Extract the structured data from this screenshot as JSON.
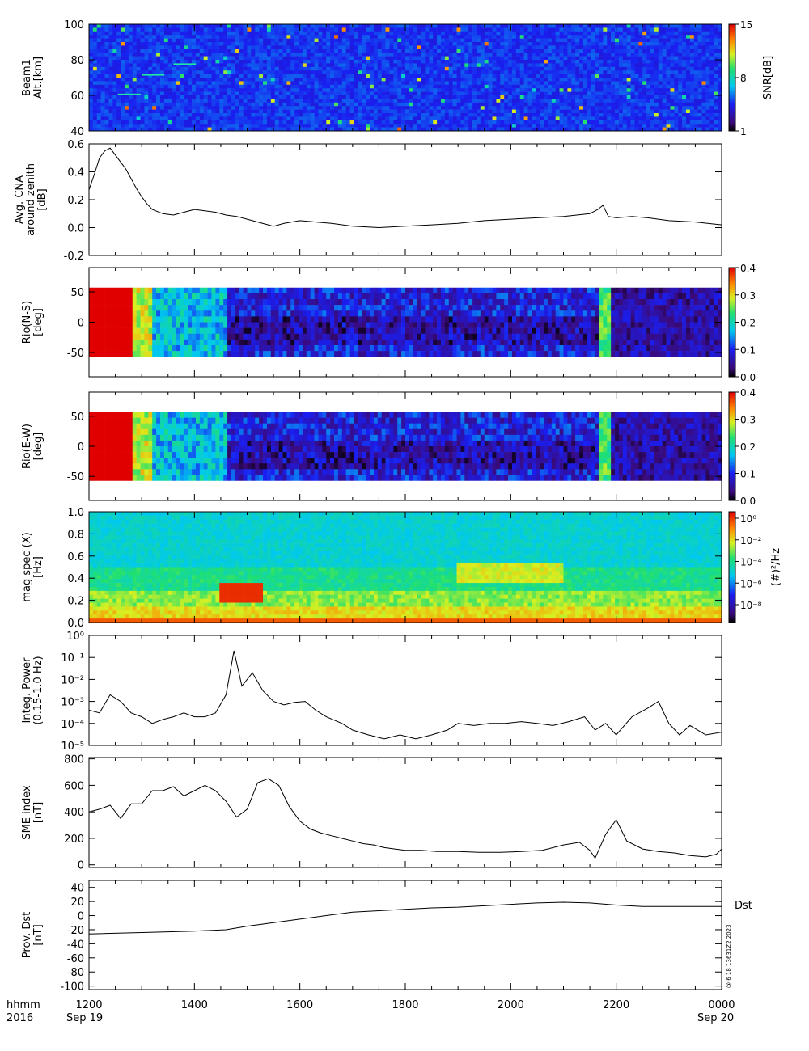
{
  "footer": {
    "hhmm_label": "hhmm",
    "year_label": "2016",
    "start_date": "Sep 19",
    "end_date": "Sep 20",
    "time_ticks": [
      "1200",
      "1400",
      "1600",
      "1800",
      "2000",
      "2200",
      "0000"
    ]
  },
  "stamp": "@ 6 18 13631Z2 2023",
  "chart_data": [
    {
      "type": "heatmap",
      "ylabel": [
        "Beam1",
        "Alt.[km]"
      ],
      "yticks": [
        "40",
        "60",
        "80",
        "100"
      ],
      "ylim": [
        40,
        100
      ],
      "colorbar": {
        "label": "SNR[dB]",
        "ticks": [
          "1",
          "8",
          "15"
        ],
        "range": [
          1,
          15
        ]
      },
      "features": [
        {
          "x_hour": 12.55,
          "y": 61,
          "note": "weak trail"
        },
        {
          "x_hour": 13.0,
          "y": 72
        },
        {
          "x_hour": 13.6,
          "y": 78
        }
      ]
    },
    {
      "type": "line",
      "ylabel": [
        "Avg. CNA",
        "around zenith",
        "[dB]"
      ],
      "yticks": [
        "0.6",
        "0.4",
        "0.2",
        "0.0",
        "-0.2"
      ],
      "ylim": [
        -0.2,
        0.6
      ],
      "x": [
        12.0,
        12.1,
        12.2,
        12.3,
        12.4,
        12.5,
        12.6,
        12.7,
        12.8,
        12.9,
        13.0,
        13.1,
        13.2,
        13.4,
        13.6,
        13.8,
        14.0,
        14.2,
        14.4,
        14.6,
        14.8,
        15.0,
        15.2,
        15.4,
        15.5,
        15.7,
        16.0,
        16.3,
        16.6,
        17.0,
        17.5,
        18.0,
        18.5,
        19.0,
        19.5,
        20.0,
        20.5,
        21.0,
        21.5,
        21.65,
        21.75,
        21.85,
        22.0,
        22.3,
        22.6,
        23.0,
        23.5,
        24.0
      ],
      "values": [
        0.27,
        0.38,
        0.5,
        0.55,
        0.57,
        0.52,
        0.47,
        0.42,
        0.35,
        0.28,
        0.22,
        0.17,
        0.13,
        0.1,
        0.09,
        0.11,
        0.13,
        0.12,
        0.11,
        0.09,
        0.08,
        0.06,
        0.04,
        0.02,
        0.01,
        0.03,
        0.05,
        0.04,
        0.03,
        0.01,
        0.0,
        0.01,
        0.02,
        0.03,
        0.05,
        0.06,
        0.07,
        0.08,
        0.1,
        0.13,
        0.16,
        0.08,
        0.07,
        0.08,
        0.07,
        0.05,
        0.04,
        0.02
      ]
    },
    {
      "type": "heatmap",
      "ylabel": [
        "Rio(N-S)",
        "[deg]"
      ],
      "yticks": [
        "50",
        "0",
        "-50"
      ],
      "ylim": [
        -90,
        90
      ],
      "colorbar": {
        "label": "",
        "ticks": [
          "0.4",
          "0.3",
          "0.2",
          "0.1",
          "0.0"
        ],
        "range": [
          0,
          0.4
        ]
      },
      "features": [
        {
          "x_range": [
            12.0,
            12.9
          ],
          "value": 0.4,
          "note": "high absorption"
        },
        {
          "x_hour": 21.8,
          "value": 0.25,
          "note": "vertical spike"
        }
      ]
    },
    {
      "type": "heatmap",
      "ylabel": [
        "Rio(E-W)",
        "[deg]"
      ],
      "yticks": [
        "50",
        "0",
        "-50"
      ],
      "ylim": [
        -90,
        90
      ],
      "colorbar": {
        "label": "",
        "ticks": [
          "0.4",
          "0.3",
          "0.2",
          "0.1",
          "0.0"
        ],
        "range": [
          0,
          0.4
        ]
      },
      "features": [
        {
          "x_range": [
            12.0,
            12.8
          ],
          "value": 0.4,
          "note": "high absorption"
        },
        {
          "x_hour": 21.8,
          "value": 0.2,
          "note": "vertical spike"
        }
      ]
    },
    {
      "type": "heatmap",
      "ylabel": [
        "mag spec (X)",
        "[Hz]"
      ],
      "yticks": [
        "1.0",
        "0.8",
        "0.6",
        "0.4",
        "0.2",
        "0.0"
      ],
      "ylim": [
        0,
        1.0
      ],
      "colorbar": {
        "label": "(#)²/Hz",
        "ticks": [
          "10⁰",
          "10⁻²",
          "10⁻⁴",
          "10⁻⁶",
          "10⁻⁸"
        ],
        "scale": "log"
      },
      "features": [
        {
          "x_range": [
            14.5,
            15.3
          ],
          "y_range": [
            0.2,
            0.35
          ],
          "note": "power peak"
        }
      ]
    },
    {
      "type": "line",
      "ylabel": [
        "Integ. Power",
        "(0.15-1.0 Hz)"
      ],
      "yscale": "log",
      "yticks": [
        "10⁰",
        "10⁻¹",
        "10⁻²",
        "10⁻³",
        "10⁻⁴",
        "10⁻⁵"
      ],
      "ylim": [
        1e-05,
        1
      ],
      "x": [
        12.0,
        12.2,
        12.4,
        12.6,
        12.8,
        13.0,
        13.2,
        13.4,
        13.6,
        13.8,
        14.0,
        14.2,
        14.4,
        14.6,
        14.75,
        14.9,
        15.1,
        15.3,
        15.5,
        15.7,
        15.9,
        16.1,
        16.3,
        16.5,
        16.8,
        17.0,
        17.3,
        17.6,
        17.9,
        18.2,
        18.5,
        18.8,
        19.0,
        19.3,
        19.6,
        19.9,
        20.2,
        20.5,
        20.8,
        21.1,
        21.4,
        21.6,
        21.8,
        22.0,
        22.3,
        22.6,
        22.8,
        23.0,
        23.2,
        23.4,
        23.7,
        24.0
      ],
      "values": [
        0.0004,
        0.0003,
        0.002,
        0.001,
        0.0003,
        0.0002,
        0.0001,
        0.00015,
        0.0002,
        0.0003,
        0.0002,
        0.0002,
        0.0003,
        0.002,
        0.2,
        0.005,
        0.02,
        0.003,
        0.001,
        0.0007,
        0.0009,
        0.001,
        0.0004,
        0.0002,
        0.0001,
        5e-05,
        3e-05,
        2e-05,
        3e-05,
        2e-05,
        3e-05,
        5e-05,
        0.0001,
        8e-05,
        0.0001,
        0.0001,
        0.00012,
        0.0001,
        8e-05,
        0.00012,
        0.0002,
        5e-05,
        0.0001,
        3e-05,
        0.0002,
        0.0005,
        0.001,
        0.0001,
        3e-05,
        8e-05,
        3e-05,
        4e-05
      ]
    },
    {
      "type": "line",
      "ylabel": [
        "SME index",
        "[nT]"
      ],
      "yticks": [
        "800",
        "600",
        "400",
        "200",
        "0"
      ],
      "ylim": [
        -20,
        810
      ],
      "x": [
        12.0,
        12.2,
        12.4,
        12.6,
        12.8,
        13.0,
        13.2,
        13.4,
        13.6,
        13.8,
        14.0,
        14.2,
        14.4,
        14.6,
        14.8,
        15.0,
        15.2,
        15.4,
        15.6,
        15.8,
        16.0,
        16.2,
        16.4,
        16.6,
        16.8,
        17.0,
        17.2,
        17.4,
        17.6,
        17.8,
        18.0,
        18.3,
        18.6,
        19.0,
        19.4,
        19.8,
        20.2,
        20.6,
        21.0,
        21.3,
        21.5,
        21.6,
        21.8,
        22.0,
        22.2,
        22.5,
        22.8,
        23.1,
        23.4,
        23.7,
        23.9,
        24.0
      ],
      "values": [
        400,
        420,
        450,
        350,
        460,
        460,
        560,
        560,
        590,
        520,
        560,
        600,
        560,
        480,
        360,
        420,
        620,
        650,
        600,
        440,
        330,
        270,
        240,
        220,
        200,
        180,
        160,
        150,
        130,
        120,
        110,
        110,
        100,
        100,
        95,
        95,
        100,
        110,
        150,
        170,
        110,
        50,
        230,
        340,
        180,
        120,
        100,
        90,
        70,
        60,
        80,
        120
      ]
    },
    {
      "type": "line",
      "ylabel": [
        "Prov. Dst",
        "[nT]"
      ],
      "yticks": [
        "40",
        "20",
        "0",
        "-20",
        "-40",
        "-60",
        "-80",
        "-100"
      ],
      "ylim": [
        -105,
        50
      ],
      "legend": "Dst",
      "x": [
        12.0,
        13.0,
        14.0,
        14.6,
        15.0,
        15.5,
        16.0,
        16.5,
        17.0,
        17.5,
        18.0,
        18.5,
        19.0,
        19.5,
        20.0,
        20.5,
        21.0,
        21.5,
        22.0,
        22.5,
        23.0,
        23.5,
        24.0
      ],
      "values": [
        -26,
        -24,
        -22,
        -20,
        -15,
        -10,
        -5,
        0,
        5,
        7,
        9,
        11,
        12,
        14,
        16,
        18,
        19,
        18,
        15,
        13,
        13,
        13,
        13
      ]
    }
  ]
}
